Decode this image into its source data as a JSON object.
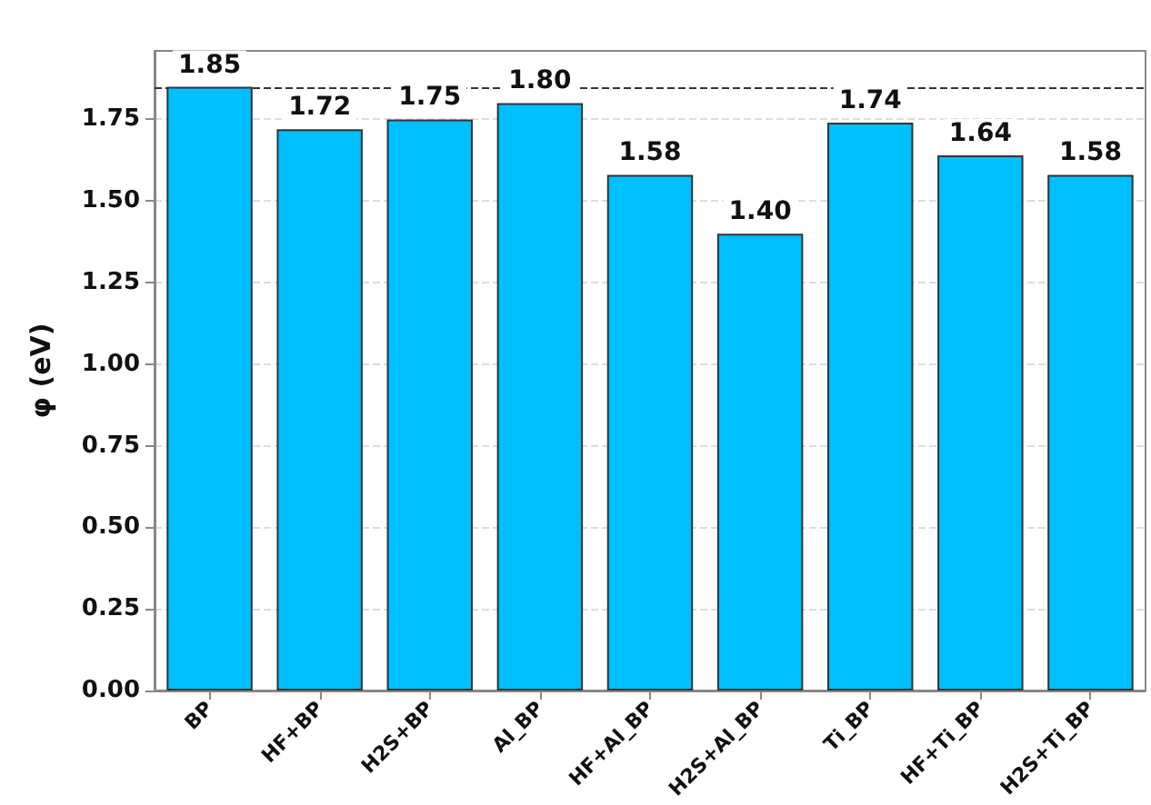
{
  "chart_data": {
    "type": "bar",
    "ylabel": "φ (eV)",
    "categories": [
      "BP",
      "HF+BP",
      "H2S+BP",
      "Al_BP",
      "HF+Al_BP",
      "H2S+Al_BP",
      "Ti_BP",
      "HF+Ti_BP",
      "H2S+Ti_BP"
    ],
    "values": [
      1.85,
      1.72,
      1.75,
      1.8,
      1.58,
      1.4,
      1.74,
      1.64,
      1.58
    ],
    "color": "#00bfff",
    "value_labels": [
      "1.85",
      "1.72",
      "1.75",
      "1.80",
      "1.58",
      "1.40",
      "1.74",
      "1.64",
      "1.58"
    ],
    "ylim": [
      0,
      1.96
    ],
    "yticks": [
      "0.00",
      "0.25",
      "0.50",
      "0.75",
      "1.00",
      "1.25",
      "1.50",
      "1.75"
    ],
    "grid": "y",
    "ref_lines": [
      {
        "axis": "y",
        "value": 1.85,
        "color": "#333333",
        "line_style": "dashed"
      }
    ]
  }
}
